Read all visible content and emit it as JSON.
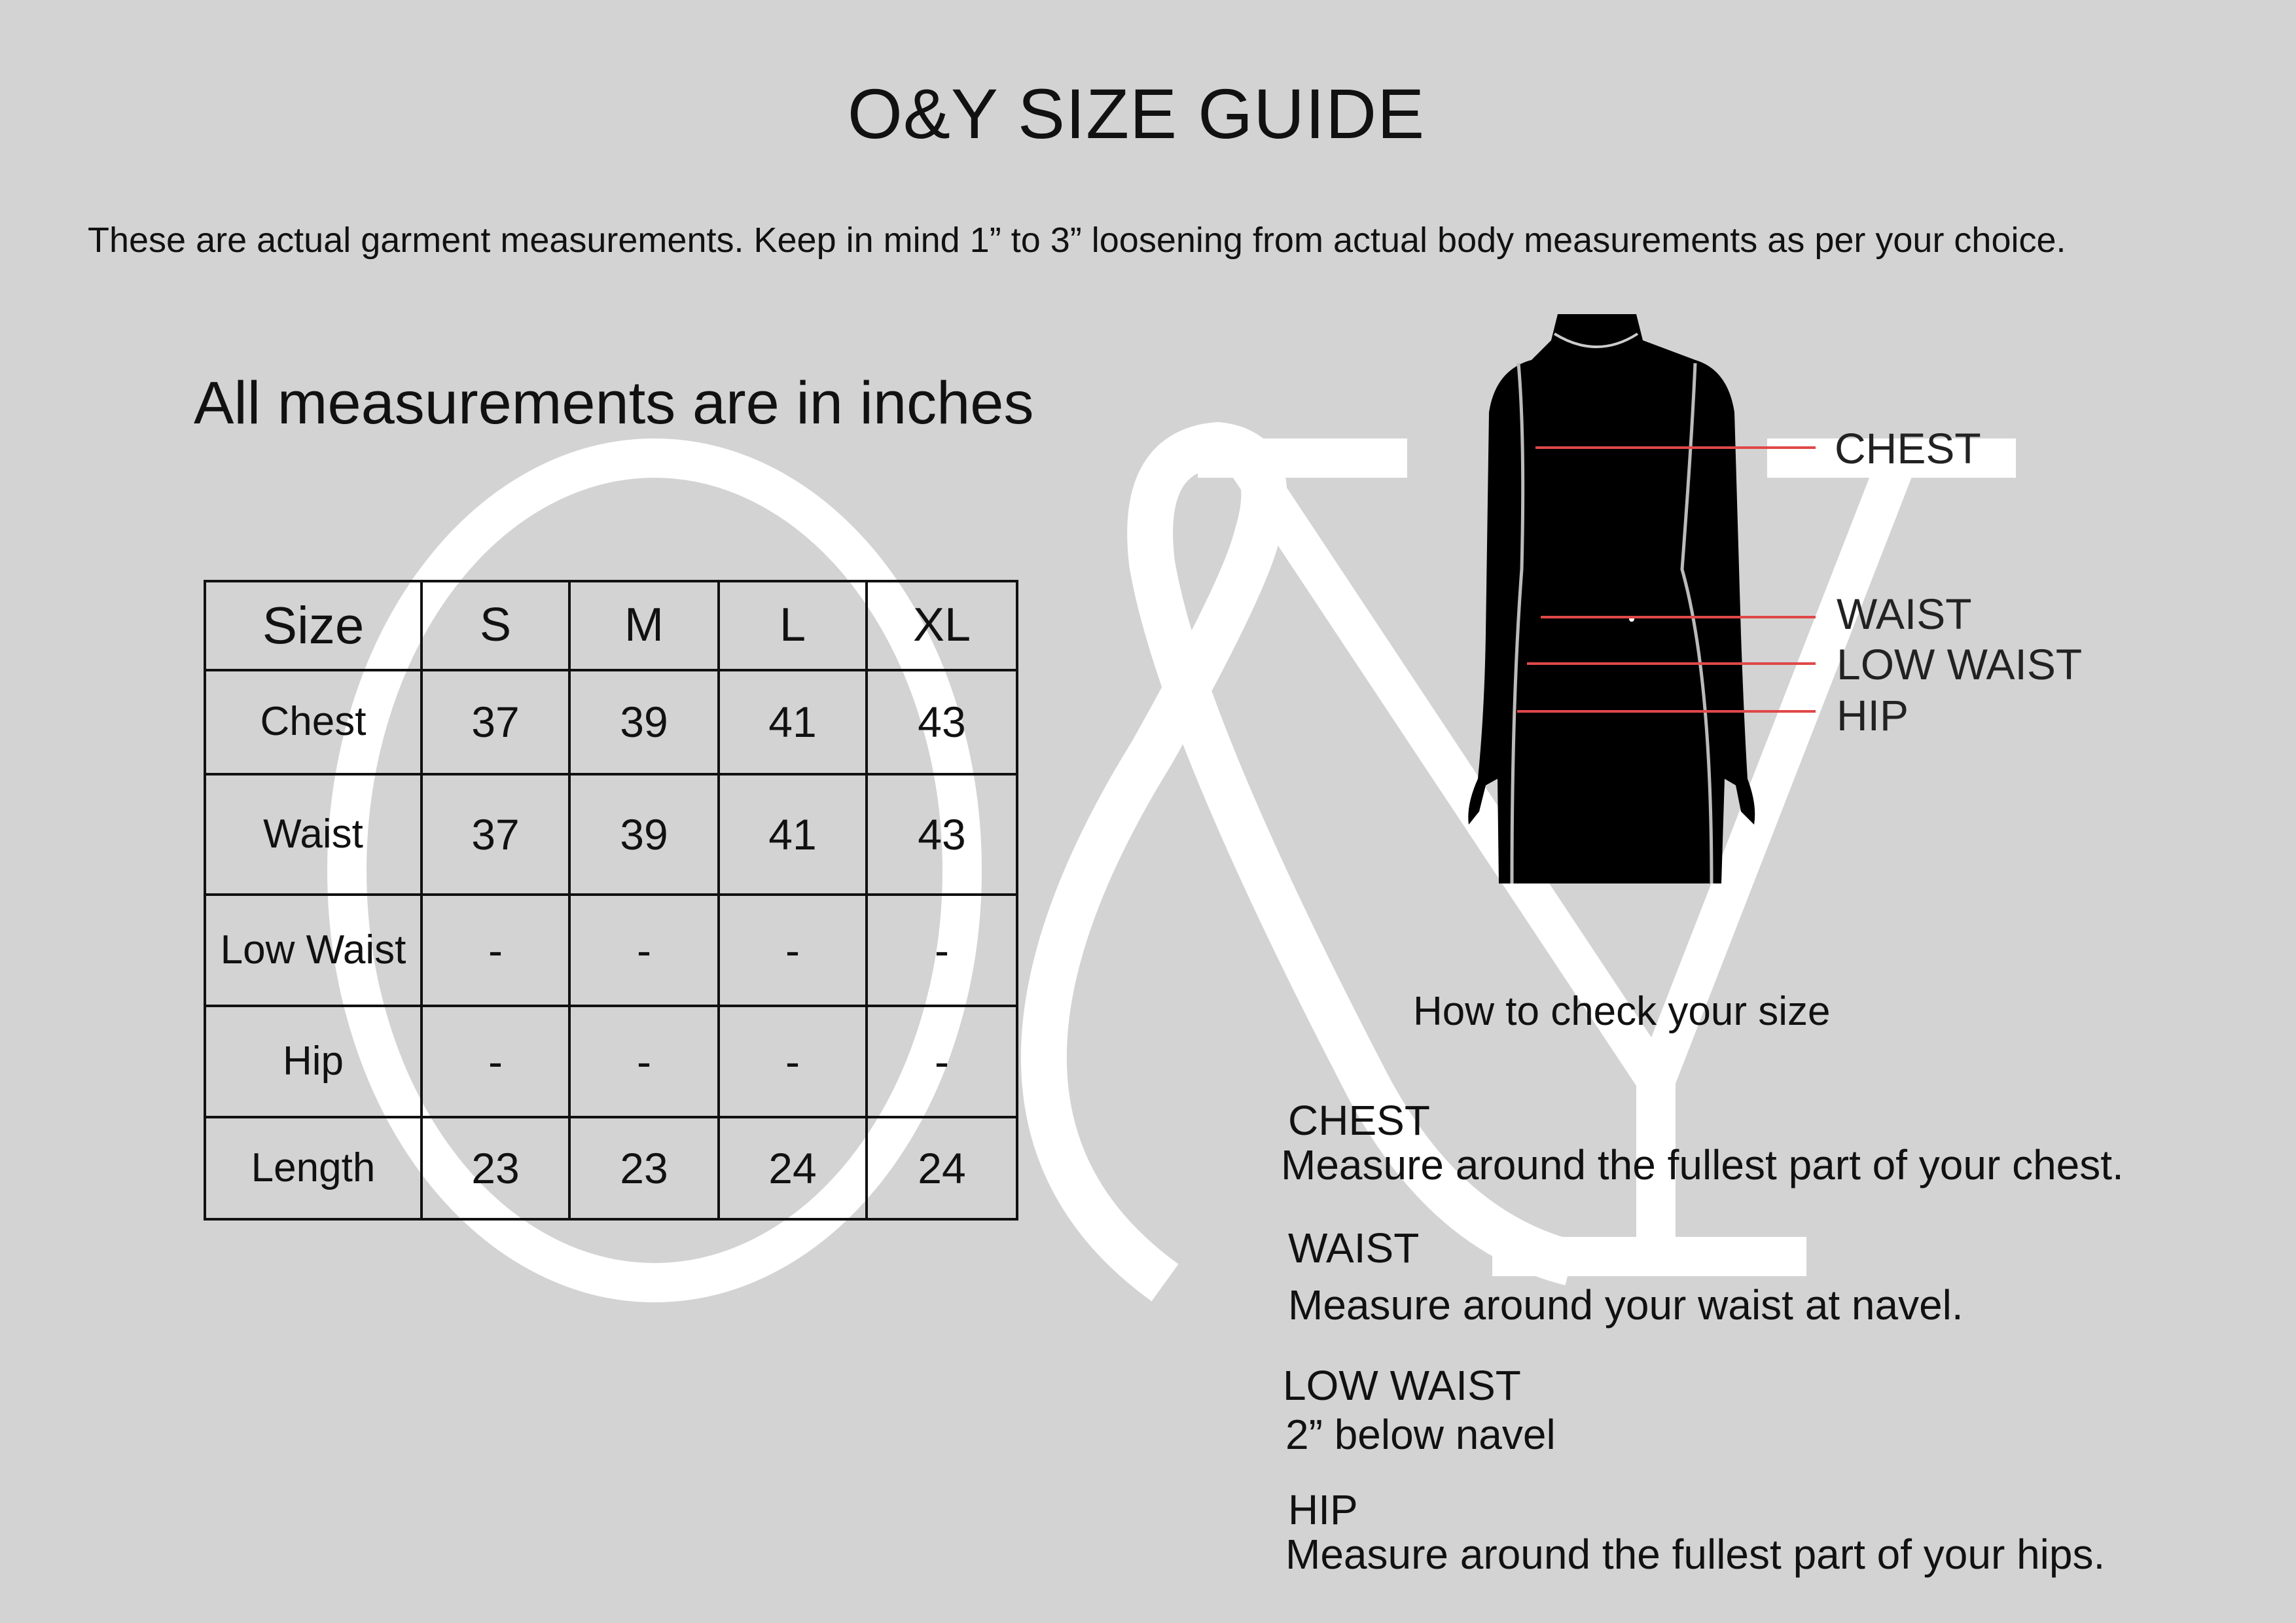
{
  "watermark": "O&Y",
  "title": "O&Y SIZE GUIDE",
  "subtitle": "These are actual garment measurements. Keep in mind 1” to 3” loosening from actual body measurements as per your choice.",
  "units_note": "All measurements are in inches",
  "table": {
    "headers": [
      "Size",
      "S",
      "M",
      "L",
      "XL"
    ],
    "rows": [
      {
        "label": "Chest",
        "values": [
          "37",
          "39",
          "41",
          "43"
        ]
      },
      {
        "label": "Waist",
        "values": [
          "37",
          "39",
          "41",
          "43"
        ]
      },
      {
        "label": "Low Waist",
        "values": [
          "-",
          "-",
          "-",
          "-"
        ]
      },
      {
        "label": "Hip",
        "values": [
          "-",
          "-",
          "-",
          "-"
        ]
      },
      {
        "label": "Length",
        "values": [
          "23",
          "23",
          "24",
          "24"
        ]
      }
    ]
  },
  "figure": {
    "labels": [
      "CHEST",
      "WAIST",
      "LOW WAIST",
      "HIP"
    ],
    "line_color": "#e04848"
  },
  "guide": {
    "heading": "How to check your size",
    "items": [
      {
        "title": "CHEST",
        "text": "Measure around the fullest part of your chest."
      },
      {
        "title": "WAIST",
        "text": "Measure around your waist at navel."
      },
      {
        "title": "LOW WAIST",
        "text": "2” below navel"
      },
      {
        "title": "HIP",
        "text": "Measure around the fullest part of your hips."
      }
    ]
  }
}
